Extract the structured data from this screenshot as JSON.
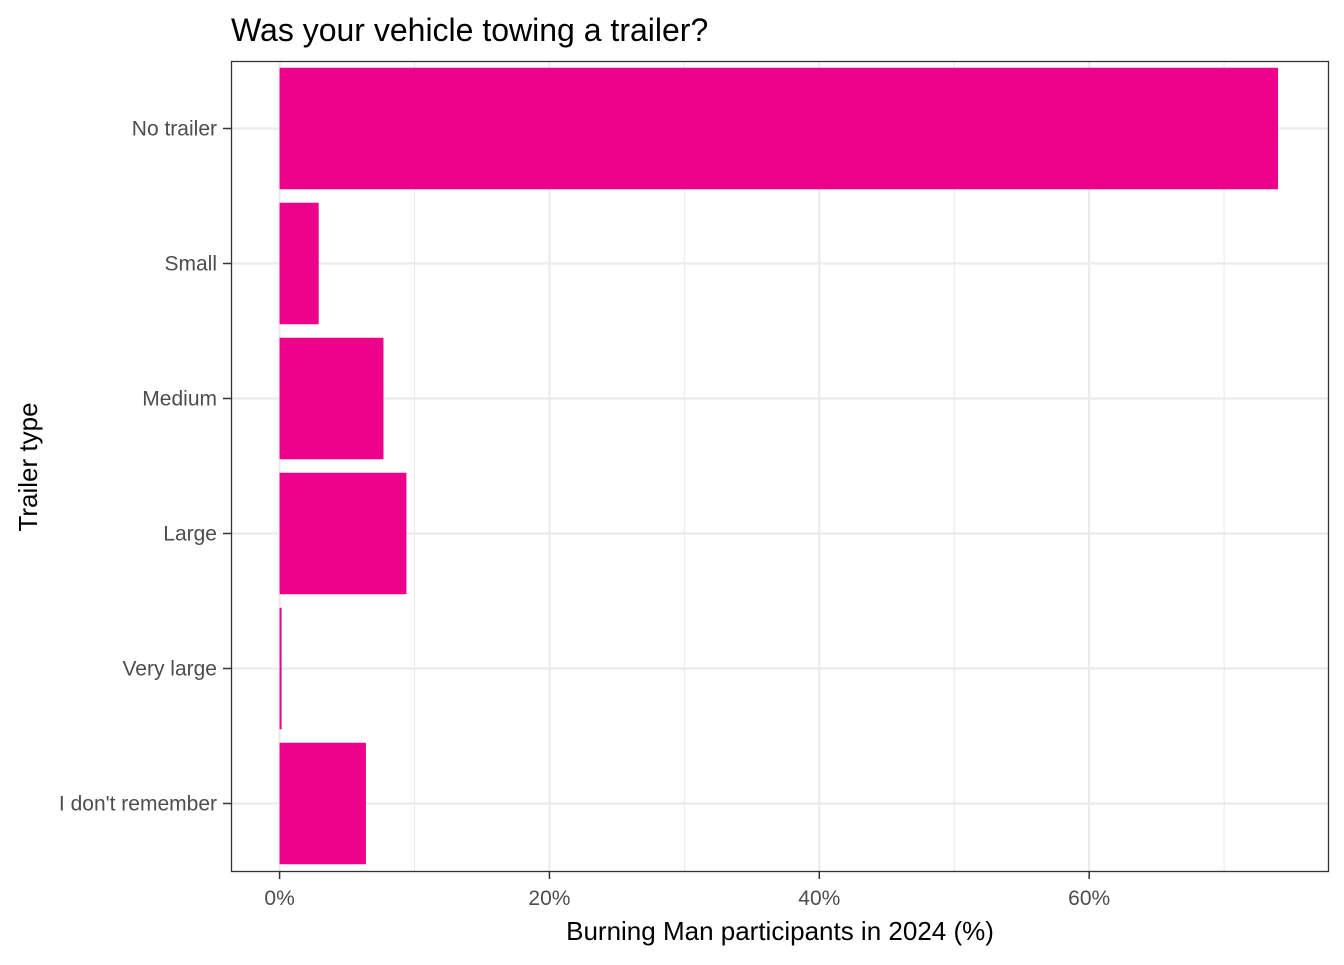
{
  "chart_data": {
    "type": "bar",
    "orientation": "horizontal",
    "title": "Was your vehicle towing a trailer?",
    "xlabel": "Burning Man participants in 2024 (%)",
    "ylabel": "Trailer type",
    "categories": [
      "No trailer",
      "Small",
      "Medium",
      "Large",
      "Very large",
      "I don't remember"
    ],
    "values": [
      74.0,
      2.9,
      7.7,
      9.4,
      0.15,
      6.4
    ],
    "xlim": [
      -3.6,
      77.7
    ],
    "xticks": [
      0,
      20,
      40,
      60
    ],
    "xtick_labels": [
      "0%",
      "20%",
      "40%",
      "60%"
    ],
    "grid": true,
    "legend": "none",
    "colors": {
      "bar": "#EC008C",
      "grid": "#EBEBEB",
      "panel_border": "#333333",
      "tick_label": "#4D4D4D",
      "tick_mark": "#333333",
      "text": "#000000"
    }
  }
}
